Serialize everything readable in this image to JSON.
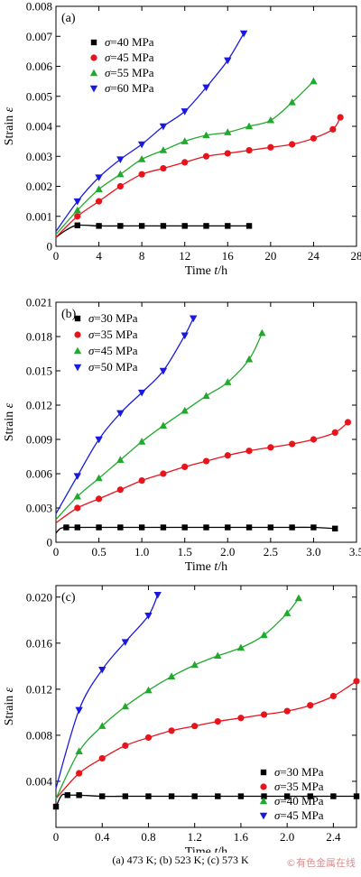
{
  "caption": "(a) 473 K; (b) 523 K; (c) 573 K",
  "watermark": "©有色金属在线",
  "colors": {
    "black": "#000000",
    "red": "#e8141c",
    "green": "#1faa2c",
    "blue": "#1a1adc"
  },
  "chart_data": [
    {
      "type": "line",
      "panel_label": "(a)",
      "xlabel": "Time t/h",
      "ylabel": "Strain ε",
      "xlim": [
        0,
        28
      ],
      "ylim": [
        0,
        0.008
      ],
      "xticks": [
        "0",
        "4",
        "8",
        "12",
        "16",
        "20",
        "24",
        "28"
      ],
      "yticks": [
        "0",
        "0.001",
        "0.002",
        "0.003",
        "0.004",
        "0.005",
        "0.006",
        "0.007",
        "0.008"
      ],
      "legend_position": "top-left",
      "series": [
        {
          "name": "σ=40 MPa",
          "color": "black",
          "marker": "square",
          "x": [
            0,
            1,
            2,
            4,
            6,
            8,
            10,
            12,
            14,
            16,
            18
          ],
          "y": [
            0.0003,
            0.00055,
            0.0007,
            0.00068,
            0.00068,
            0.00068,
            0.00068,
            0.00068,
            0.00068,
            0.00068,
            0.00068
          ],
          "marker_x": [
            2,
            4,
            6,
            8,
            10,
            12,
            14,
            16,
            18
          ]
        },
        {
          "name": "σ=45 MPa",
          "color": "red",
          "marker": "circle",
          "x": [
            0,
            2,
            4,
            6,
            8,
            10,
            12,
            14,
            16,
            18,
            20,
            22,
            24,
            25.8,
            26.5
          ],
          "y": [
            0.0003,
            0.001,
            0.0015,
            0.002,
            0.0024,
            0.0026,
            0.0028,
            0.003,
            0.0031,
            0.0032,
            0.0033,
            0.0034,
            0.0036,
            0.0039,
            0.0043
          ],
          "marker_x": [
            2,
            4,
            6,
            8,
            10,
            12,
            14,
            16,
            18,
            20,
            22,
            24,
            25.8,
            26.5
          ]
        },
        {
          "name": "σ=55 MPa",
          "color": "green",
          "marker": "triangle-up",
          "x": [
            0,
            2,
            4,
            6,
            8,
            10,
            12,
            14,
            16,
            18,
            20,
            22,
            24
          ],
          "y": [
            0.0004,
            0.0012,
            0.0019,
            0.0024,
            0.0029,
            0.0032,
            0.0035,
            0.0037,
            0.0038,
            0.004,
            0.0042,
            0.0048,
            0.0055
          ],
          "marker_x": [
            2,
            4,
            6,
            8,
            10,
            12,
            14,
            16,
            18,
            20,
            22,
            24
          ]
        },
        {
          "name": "σ=60 MPa",
          "color": "blue",
          "marker": "triangle-down",
          "x": [
            0,
            2,
            4,
            6,
            8,
            10,
            12,
            14,
            16,
            17.5
          ],
          "y": [
            0.0005,
            0.0015,
            0.0023,
            0.0029,
            0.0034,
            0.004,
            0.0045,
            0.0053,
            0.0062,
            0.0071
          ],
          "marker_x": [
            2,
            4,
            6,
            8,
            10,
            12,
            14,
            16,
            17.5
          ]
        }
      ]
    },
    {
      "type": "line",
      "panel_label": "(b)",
      "xlabel": "Time t/h",
      "ylabel": "Strain ε",
      "xlim": [
        0,
        3.5
      ],
      "ylim": [
        0,
        0.021
      ],
      "xticks": [
        "0",
        "0.5",
        "1.0",
        "1.5",
        "2.0",
        "2.5",
        "3.0",
        "3.5"
      ],
      "yticks": [
        "0",
        "0.003",
        "0.006",
        "0.009",
        "0.012",
        "0.015",
        "0.018",
        "0.021"
      ],
      "legend_position": "top-left",
      "series": [
        {
          "name": "σ=30 MPa",
          "color": "black",
          "marker": "square",
          "x": [
            0,
            0.05,
            0.12,
            0.25,
            0.5,
            0.75,
            1.0,
            1.25,
            1.5,
            1.75,
            2.0,
            2.25,
            2.5,
            2.75,
            3.0,
            3.25
          ],
          "y": [
            0.0008,
            0.0012,
            0.0013,
            0.0013,
            0.0013,
            0.0013,
            0.0013,
            0.0013,
            0.0013,
            0.0013,
            0.0013,
            0.0013,
            0.0013,
            0.0013,
            0.0013,
            0.0012
          ],
          "marker_x": [
            0.12,
            0.25,
            0.5,
            0.75,
            1.0,
            1.25,
            1.5,
            1.75,
            2.0,
            2.25,
            2.5,
            2.75,
            3.0,
            3.25
          ]
        },
        {
          "name": "σ=35 MPa",
          "color": "red",
          "marker": "circle",
          "x": [
            0,
            0.25,
            0.5,
            0.75,
            1.0,
            1.25,
            1.5,
            1.75,
            2.0,
            2.25,
            2.5,
            2.75,
            3.0,
            3.25,
            3.4
          ],
          "y": [
            0.0017,
            0.003,
            0.0038,
            0.0046,
            0.0054,
            0.006,
            0.0066,
            0.0071,
            0.0076,
            0.008,
            0.0083,
            0.0086,
            0.009,
            0.0096,
            0.0105
          ],
          "marker_x": [
            0.25,
            0.5,
            0.75,
            1.0,
            1.25,
            1.5,
            1.75,
            2.0,
            2.25,
            2.5,
            2.75,
            3.0,
            3.25,
            3.4
          ]
        },
        {
          "name": "σ=45 MPa",
          "color": "green",
          "marker": "triangle-up",
          "x": [
            0,
            0.25,
            0.5,
            0.75,
            1.0,
            1.25,
            1.5,
            1.75,
            2.0,
            2.25,
            2.4
          ],
          "y": [
            0.002,
            0.004,
            0.0056,
            0.0072,
            0.0088,
            0.0102,
            0.0115,
            0.0128,
            0.014,
            0.016,
            0.0183
          ],
          "marker_x": [
            0.25,
            0.5,
            0.75,
            1.0,
            1.25,
            1.5,
            1.75,
            2.0,
            2.25,
            2.4
          ]
        },
        {
          "name": "σ=50 MPa",
          "color": "blue",
          "marker": "triangle-down",
          "x": [
            0,
            0.25,
            0.5,
            0.75,
            1.0,
            1.25,
            1.5,
            1.6
          ],
          "y": [
            0.0025,
            0.0058,
            0.009,
            0.0113,
            0.0131,
            0.015,
            0.0181,
            0.0196
          ],
          "marker_x": [
            0.25,
            0.5,
            0.75,
            1.0,
            1.25,
            1.5,
            1.6
          ]
        }
      ]
    },
    {
      "type": "line",
      "panel_label": "(c)",
      "xlabel": "Time t/h",
      "ylabel": "Strain ε",
      "xlim": [
        0,
        2.6
      ],
      "ylim": [
        0,
        0.021
      ],
      "xticks": [
        "0",
        "0.4",
        "0.8",
        "1.2",
        "1.6",
        "2.0",
        "2.4"
      ],
      "yticks": [
        "0.004",
        "0.008",
        "0.012",
        "0.016",
        "0.020"
      ],
      "legend_position": "bottom-right",
      "series": [
        {
          "name": "σ=30 MPa",
          "color": "black",
          "marker": "square",
          "x": [
            0,
            0.05,
            0.1,
            0.2,
            0.4,
            0.6,
            0.8,
            1.0,
            1.2,
            1.4,
            1.6,
            1.8,
            2.0,
            2.2,
            2.4,
            2.6
          ],
          "y": [
            0.0018,
            0.0028,
            0.0028,
            0.0028,
            0.0027,
            0.0027,
            0.0027,
            0.0027,
            0.0027,
            0.0027,
            0.0027,
            0.0027,
            0.0027,
            0.0027,
            0.0027,
            0.0027
          ],
          "marker_x": [
            0,
            0.1,
            0.2,
            0.4,
            0.6,
            0.8,
            1.0,
            1.2,
            1.4,
            1.6,
            1.8,
            2.0,
            2.2,
            2.4,
            2.6
          ]
        },
        {
          "name": "σ=35 MPa",
          "color": "red",
          "marker": "circle",
          "x": [
            0,
            0.2,
            0.4,
            0.6,
            0.8,
            1.0,
            1.2,
            1.4,
            1.6,
            1.8,
            2.0,
            2.2,
            2.4,
            2.6
          ],
          "y": [
            0.0025,
            0.0047,
            0.006,
            0.0071,
            0.0078,
            0.0084,
            0.0088,
            0.0092,
            0.0095,
            0.0098,
            0.0101,
            0.0106,
            0.0114,
            0.0127
          ],
          "marker_x": [
            0.2,
            0.4,
            0.6,
            0.8,
            1.0,
            1.2,
            1.4,
            1.6,
            1.8,
            2.0,
            2.2,
            2.4,
            2.6
          ]
        },
        {
          "name": "σ=40 MPa",
          "color": "green",
          "marker": "triangle-up",
          "x": [
            0,
            0.2,
            0.4,
            0.6,
            0.8,
            1.0,
            1.2,
            1.4,
            1.6,
            1.8,
            2.0,
            2.1
          ],
          "y": [
            0.0025,
            0.0066,
            0.0088,
            0.0105,
            0.0119,
            0.0131,
            0.0141,
            0.0149,
            0.0156,
            0.0167,
            0.0186,
            0.0199
          ],
          "marker_x": [
            0.2,
            0.4,
            0.6,
            0.8,
            1.0,
            1.2,
            1.4,
            1.6,
            1.8,
            2.0,
            2.1
          ]
        },
        {
          "name": "σ=45 MPa",
          "color": "blue",
          "marker": "triangle-down",
          "x": [
            0,
            0.2,
            0.4,
            0.6,
            0.8,
            0.88
          ],
          "y": [
            0.0034,
            0.0102,
            0.0137,
            0.0161,
            0.0184,
            0.0202
          ],
          "marker_x": [
            0.2,
            0.4,
            0.6,
            0.8,
            0.88
          ]
        }
      ]
    }
  ]
}
